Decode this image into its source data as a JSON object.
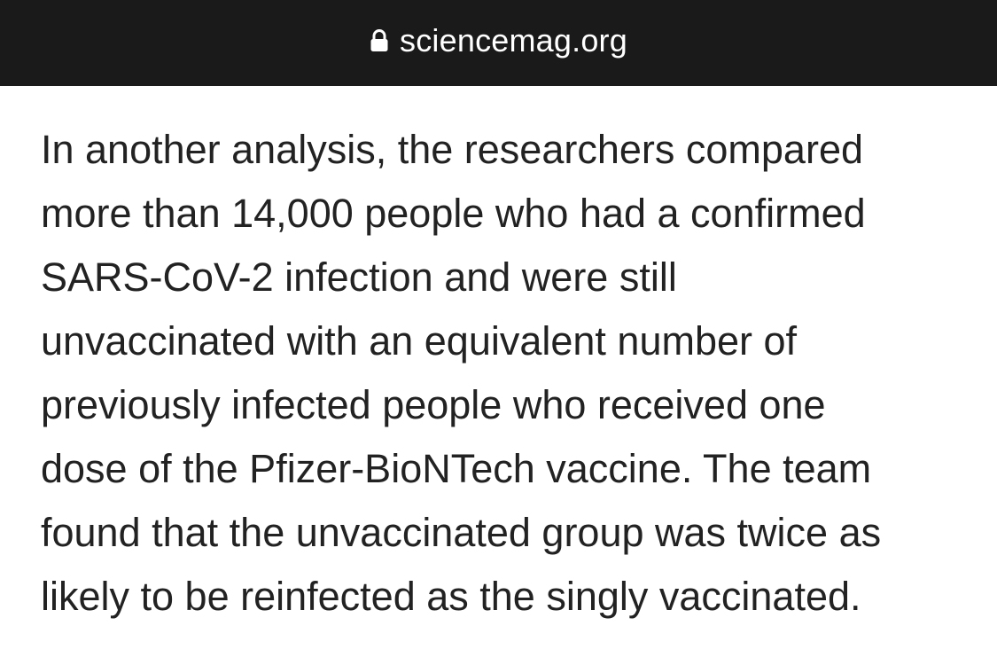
{
  "browser": {
    "url": "sciencemag.org",
    "lock_icon": "lock-icon"
  },
  "article": {
    "lines": [
      "In another analysis, the researchers compared",
      "more than 14,000 people who had a confirmed",
      "SARS-CoV-2 infection and were still",
      "unvaccinated with an equivalent number of",
      "previously infected people who received one",
      "dose of the Pfizer-BioNTech vaccine. The team",
      "found that the unvaccinated group was twice as",
      "likely to be reinfected as the singly vaccinated."
    ]
  },
  "colors": {
    "url_bar_bg": "#1a1a1a",
    "url_text": "#ffffff",
    "body_text": "#222222",
    "page_bg": "#ffffff"
  }
}
